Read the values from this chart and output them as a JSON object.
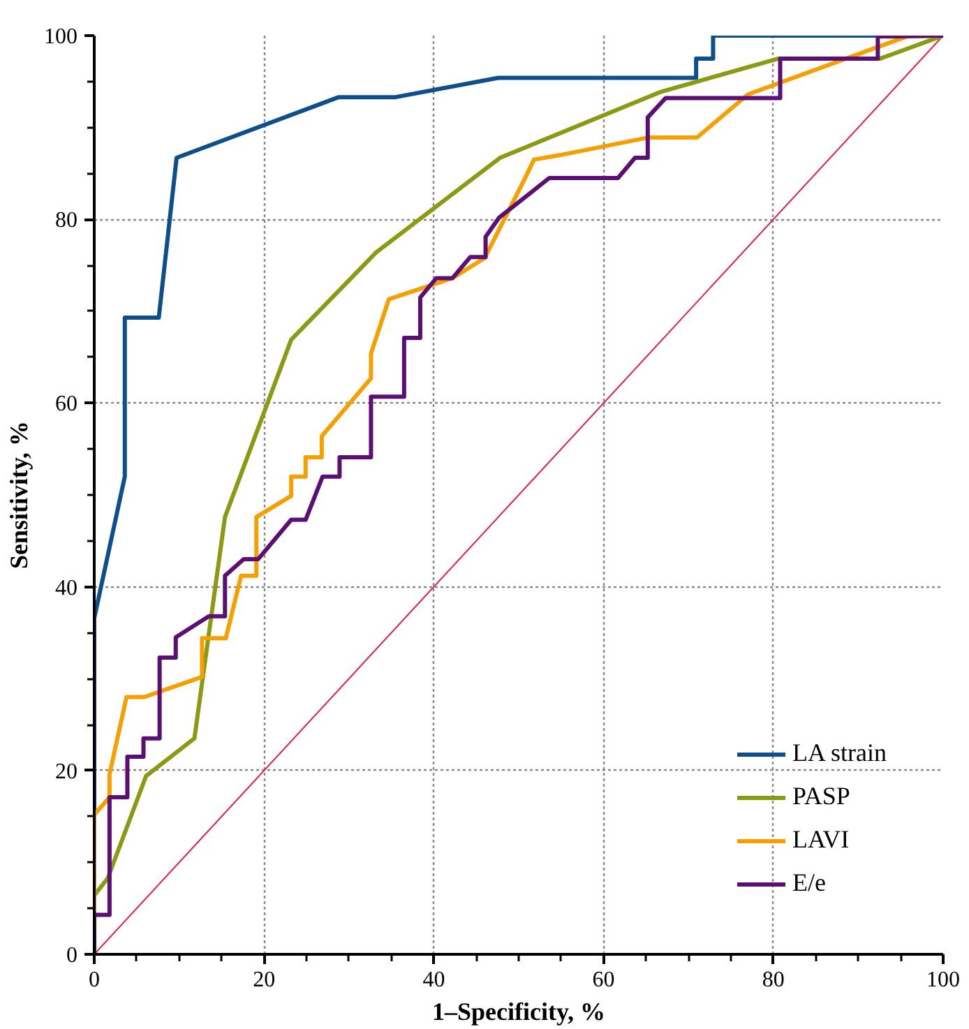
{
  "chart_data": {
    "type": "line",
    "xlabel": "1–Specificity, %",
    "ylabel": "Sensitivity, %",
    "xlim": [
      0,
      100
    ],
    "ylim": [
      0,
      100
    ],
    "xticks": [
      0,
      {
        "value": 5,
        "label": null
      },
      {
        "value": 10,
        "label": null
      },
      {
        "value": 15,
        "label": null
      },
      20,
      {
        "value": 25,
        "label": null
      },
      {
        "value": 30,
        "label": null
      },
      {
        "value": 35,
        "label": null
      },
      40,
      {
        "value": 45,
        "label": null
      },
      {
        "value": 50,
        "label": null
      },
      {
        "value": 55,
        "label": null
      },
      60,
      {
        "value": 65,
        "label": null
      },
      {
        "value": 70,
        "label": null
      },
      {
        "value": 75,
        "label": null
      },
      80,
      {
        "value": 85,
        "label": null
      },
      {
        "value": 90,
        "label": null
      },
      {
        "value": 95,
        "label": null
      },
      100
    ],
    "yticks": [
      0,
      {
        "value": 5,
        "label": null
      },
      {
        "value": 10,
        "label": null
      },
      {
        "value": 15,
        "label": null
      },
      20,
      {
        "value": 25,
        "label": null
      },
      {
        "value": 30,
        "label": null
      },
      {
        "value": 35,
        "label": null
      },
      40,
      {
        "value": 45,
        "label": null
      },
      {
        "value": 50,
        "label": null
      },
      {
        "value": 55,
        "label": null
      },
      60,
      {
        "value": 65,
        "label": null
      },
      {
        "value": 70,
        "label": null
      },
      {
        "value": 75,
        "label": null
      },
      80,
      {
        "value": 85,
        "label": null
      },
      {
        "value": 90,
        "label": null
      },
      {
        "value": 95,
        "label": null
      },
      100
    ],
    "grid": true,
    "legend": "bottom right",
    "line_style": "solid",
    "marker": "none",
    "series": [
      {
        "color": "#e0204a",
        "x": [
          0,
          100
        ],
        "values": [
          0,
          100
        ]
      },
      {
        "name": "LA strain",
        "color": "#0d4f8b",
        "x": [
          0,
          0,
          3.6,
          3.6,
          7.6,
          9.7,
          28.8,
          35.5,
          47.6,
          70.9,
          70.9,
          72.9,
          72.9,
          100
        ],
        "values": [
          0,
          36.6,
          52,
          69.3,
          69.3,
          86.7,
          93.3,
          93.3,
          95.4,
          95.4,
          97.5,
          97.5,
          100,
          100
        ]
      },
      {
        "name": "PASP",
        "color": "#8a9a12",
        "x": [
          0,
          1.6,
          6.1,
          11.8,
          15.4,
          23.2,
          33.2,
          47.8,
          66.8,
          80.6,
          92.6,
          100
        ],
        "values": [
          6.4,
          8.3,
          19.4,
          23.5,
          47.6,
          66.9,
          76.4,
          86.7,
          93.9,
          97.5,
          97.5,
          100
        ]
      },
      {
        "name": "LAVI",
        "color": "#f5a000",
        "x": [
          0,
          0,
          1.8,
          1.8,
          3.8,
          5.9,
          12.7,
          12.7,
          15.5,
          17.3,
          19.1,
          19.1,
          23.2,
          23.2,
          24.9,
          24.9,
          26.8,
          26.8,
          32.6,
          32.6,
          34.7,
          42.2,
          46.0,
          50.6,
          51.8,
          54.9,
          65.2,
          71.0,
          77.0,
          95.7,
          100
        ],
        "values": [
          0,
          15.2,
          17.1,
          19.6,
          28.0,
          28.0,
          30.2,
          34.4,
          34.4,
          41.2,
          41.2,
          47.6,
          49.9,
          52.0,
          52.0,
          54.1,
          54.1,
          56.4,
          62.7,
          65.4,
          71.3,
          73.6,
          75.8,
          84.2,
          86.5,
          87.0,
          88.9,
          88.9,
          93.6,
          99.9,
          100
        ]
      },
      {
        "name": "E/e",
        "color": "#5c0f73",
        "x": [
          0,
          0,
          1.8,
          1.8,
          3.9,
          3.9,
          5.8,
          5.8,
          7.7,
          7.7,
          9.6,
          9.6,
          13.5,
          15.4,
          15.4,
          17.6,
          19.3,
          23.2,
          24.9,
          26.9,
          28.9,
          28.9,
          32.6,
          32.6,
          36.5,
          36.5,
          38.4,
          38.4,
          40.3,
          42.2,
          44.3,
          46.1,
          46.1,
          47.7,
          50.6,
          53.6,
          61.7,
          63.7,
          65.2,
          65.2,
          67.3,
          80.8,
          80.8,
          92.3,
          92.3,
          100
        ],
        "values": [
          0,
          4.3,
          4.3,
          17.1,
          17.1,
          21.5,
          21.5,
          23.5,
          23.5,
          32.3,
          32.3,
          34.5,
          36.8,
          36.8,
          41.2,
          43.0,
          43.0,
          47.3,
          47.3,
          52.0,
          52.0,
          54.1,
          54.1,
          60.7,
          60.7,
          67.1,
          67.1,
          71.5,
          73.6,
          73.6,
          75.9,
          75.9,
          78.1,
          80.2,
          82.3,
          84.5,
          84.5,
          86.7,
          86.7,
          91.1,
          93.2,
          93.2,
          97.5,
          97.5,
          99.9,
          100
        ]
      }
    ]
  }
}
